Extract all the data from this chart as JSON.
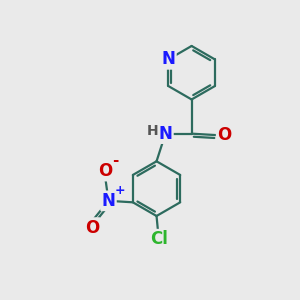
{
  "bg_color": "#eaeaea",
  "bond_color": "#2d6b5e",
  "bond_width": 1.6,
  "atom_colors": {
    "N_pyridine": "#1a1aff",
    "N_amide": "#1a1aff",
    "O_carbonyl": "#cc0000",
    "O_nitro1": "#cc0000",
    "O_nitro2": "#cc0000",
    "N_nitro": "#1a1aff",
    "Cl": "#2db52d",
    "H": "#555555"
  },
  "font_size": 11,
  "fig_size": [
    3.0,
    3.0
  ],
  "dpi": 100,
  "xlim": [
    0,
    10
  ],
  "ylim": [
    0,
    10
  ]
}
